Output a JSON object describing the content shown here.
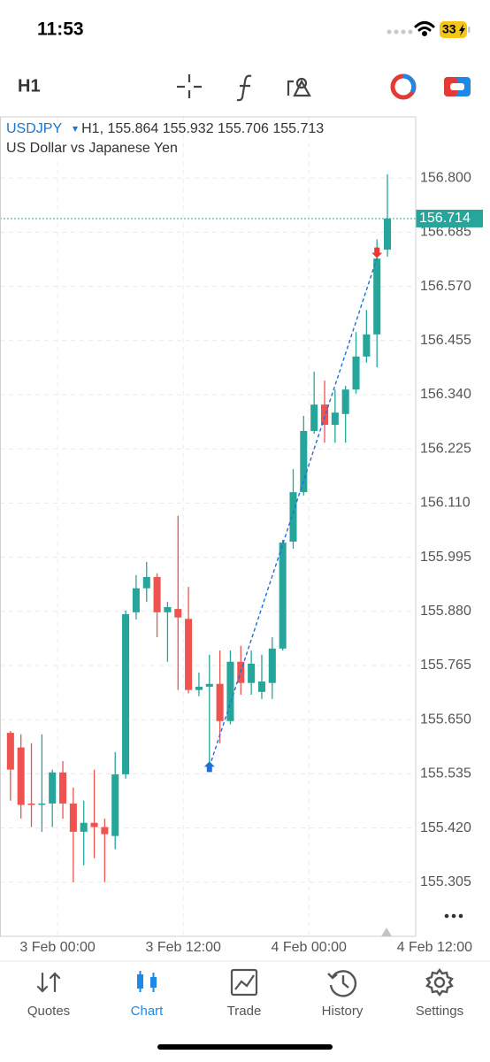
{
  "status_bar": {
    "time": "11:53",
    "battery": "33"
  },
  "toolbar": {
    "timeframe": "H1"
  },
  "chart_data": {
    "type": "candlestick",
    "symbol": "USDJPY",
    "info": "H1, 155.864 155.932 155.706 155.713",
    "description": "US Dollar vs Japanese Yen",
    "x": [
      0,
      1,
      2,
      3,
      4,
      5,
      6,
      7,
      8,
      9,
      10,
      11,
      12,
      13,
      14,
      15,
      16,
      17,
      18,
      19,
      20,
      21,
      22,
      23,
      24,
      25,
      26,
      27,
      28,
      29,
      30,
      31,
      32,
      33,
      34,
      35,
      36
    ],
    "open": [
      155.622,
      155.591,
      155.472,
      155.47,
      155.472,
      155.538,
      155.472,
      155.412,
      155.431,
      155.422,
      155.403,
      155.534,
      155.878,
      155.929,
      155.953,
      155.878,
      155.885,
      155.864,
      155.713,
      155.72,
      155.726,
      155.647,
      155.773,
      155.728,
      155.709,
      155.728,
      155.801,
      156.028,
      156.133,
      156.263,
      156.319,
      156.276,
      156.299,
      156.351,
      156.421,
      156.468,
      156.648
    ],
    "high": [
      155.626,
      155.619,
      155.6,
      155.619,
      155.544,
      155.562,
      155.506,
      155.478,
      155.544,
      155.44,
      155.581,
      155.882,
      155.957,
      155.985,
      155.961,
      155.9,
      156.083,
      155.932,
      155.75,
      155.788,
      155.797,
      155.797,
      155.807,
      155.797,
      155.788,
      155.825,
      156.032,
      156.182,
      156.295,
      156.389,
      156.37,
      156.351,
      156.359,
      156.473,
      156.52,
      156.67,
      156.808
    ],
    "low": [
      155.478,
      155.44,
      155.422,
      155.412,
      155.422,
      155.44,
      155.305,
      155.341,
      155.356,
      155.305,
      155.375,
      155.525,
      155.863,
      155.9,
      155.825,
      155.773,
      155.713,
      155.706,
      155.7,
      155.547,
      155.6,
      155.64,
      155.703,
      155.703,
      155.694,
      155.694,
      155.797,
      156.013,
      156.126,
      156.257,
      156.238,
      156.238,
      156.238,
      156.342,
      156.408,
      156.398,
      156.633
    ],
    "close": [
      155.544,
      155.469,
      155.469,
      155.472,
      155.538,
      155.472,
      155.412,
      155.431,
      155.422,
      155.407,
      155.534,
      155.874,
      155.929,
      155.953,
      155.878,
      155.889,
      155.867,
      155.713,
      155.72,
      155.726,
      155.647,
      155.773,
      155.728,
      155.769,
      155.731,
      155.801,
      156.026,
      156.133,
      156.263,
      156.319,
      156.276,
      156.302,
      156.351,
      156.421,
      156.468,
      156.629,
      156.714
    ],
    "up_color": "#26a69a",
    "down_color": "#ef5350",
    "xlim": [
      -1,
      38.7
    ],
    "ylim": [
      155.19,
      156.93
    ],
    "xticks": [
      {
        "value": 4.5,
        "label": "3 Feb 00:00"
      },
      {
        "value": 16.5,
        "label": "3 Feb 12:00"
      },
      {
        "value": 28.5,
        "label": "4 Feb 00:00"
      },
      {
        "value": 40.5,
        "label": "4 Feb 12:00"
      }
    ],
    "yticks": [
      {
        "value": 156.8,
        "label": "156.800"
      },
      156.685,
      {
        "value": 156.57,
        "label": "156.570"
      },
      156.455,
      {
        "value": 156.34,
        "label": "156.340"
      },
      156.225,
      {
        "value": 156.11,
        "label": "156.110"
      },
      155.995,
      {
        "value": 155.88,
        "label": "155.880"
      },
      155.765,
      {
        "value": 155.65,
        "label": "155.650"
      },
      155.535,
      {
        "value": 155.42,
        "label": "155.420"
      },
      155.305
    ],
    "grid": true,
    "last_price": 156.714,
    "last_price_color": "#26a69a",
    "trade_line": {
      "x": [
        19,
        35
      ],
      "y": [
        155.55,
        156.63
      ]
    }
  },
  "tabs": [
    {
      "label": "Quotes"
    },
    {
      "label": "Chart"
    },
    {
      "label": "Trade"
    },
    {
      "label": "History"
    },
    {
      "label": "Settings"
    }
  ],
  "active_tab": 1
}
